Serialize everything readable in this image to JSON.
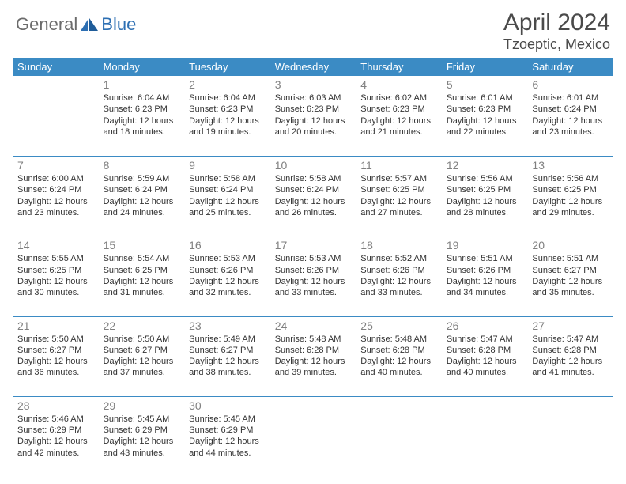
{
  "colors": {
    "accent": "#3b8bc4",
    "border": "#3b8bc4",
    "text": "#333333",
    "daynum": "#808080",
    "bg": "#ffffff",
    "logo_gray": "#6b6b6b",
    "logo_blue": "#2d6fb3"
  },
  "logo": {
    "word1": "General",
    "word2": "Blue"
  },
  "title": {
    "month": "April 2024",
    "location": "Tzoeptic, Mexico"
  },
  "weekdays": [
    "Sunday",
    "Monday",
    "Tuesday",
    "Wednesday",
    "Thursday",
    "Friday",
    "Saturday"
  ],
  "layout": {
    "weeks": 5,
    "columns": 7,
    "cell_fontsize": 11,
    "daynum_fontsize": 14,
    "header_fontsize": 13
  },
  "days": [
    {
      "empty": true
    },
    {
      "n": "1",
      "sr": "Sunrise: 6:04 AM",
      "ss": "Sunset: 6:23 PM",
      "d1": "Daylight: 12 hours",
      "d2": "and 18 minutes."
    },
    {
      "n": "2",
      "sr": "Sunrise: 6:04 AM",
      "ss": "Sunset: 6:23 PM",
      "d1": "Daylight: 12 hours",
      "d2": "and 19 minutes."
    },
    {
      "n": "3",
      "sr": "Sunrise: 6:03 AM",
      "ss": "Sunset: 6:23 PM",
      "d1": "Daylight: 12 hours",
      "d2": "and 20 minutes."
    },
    {
      "n": "4",
      "sr": "Sunrise: 6:02 AM",
      "ss": "Sunset: 6:23 PM",
      "d1": "Daylight: 12 hours",
      "d2": "and 21 minutes."
    },
    {
      "n": "5",
      "sr": "Sunrise: 6:01 AM",
      "ss": "Sunset: 6:23 PM",
      "d1": "Daylight: 12 hours",
      "d2": "and 22 minutes."
    },
    {
      "n": "6",
      "sr": "Sunrise: 6:01 AM",
      "ss": "Sunset: 6:24 PM",
      "d1": "Daylight: 12 hours",
      "d2": "and 23 minutes."
    },
    {
      "n": "7",
      "sr": "Sunrise: 6:00 AM",
      "ss": "Sunset: 6:24 PM",
      "d1": "Daylight: 12 hours",
      "d2": "and 23 minutes."
    },
    {
      "n": "8",
      "sr": "Sunrise: 5:59 AM",
      "ss": "Sunset: 6:24 PM",
      "d1": "Daylight: 12 hours",
      "d2": "and 24 minutes."
    },
    {
      "n": "9",
      "sr": "Sunrise: 5:58 AM",
      "ss": "Sunset: 6:24 PM",
      "d1": "Daylight: 12 hours",
      "d2": "and 25 minutes."
    },
    {
      "n": "10",
      "sr": "Sunrise: 5:58 AM",
      "ss": "Sunset: 6:24 PM",
      "d1": "Daylight: 12 hours",
      "d2": "and 26 minutes."
    },
    {
      "n": "11",
      "sr": "Sunrise: 5:57 AM",
      "ss": "Sunset: 6:25 PM",
      "d1": "Daylight: 12 hours",
      "d2": "and 27 minutes."
    },
    {
      "n": "12",
      "sr": "Sunrise: 5:56 AM",
      "ss": "Sunset: 6:25 PM",
      "d1": "Daylight: 12 hours",
      "d2": "and 28 minutes."
    },
    {
      "n": "13",
      "sr": "Sunrise: 5:56 AM",
      "ss": "Sunset: 6:25 PM",
      "d1": "Daylight: 12 hours",
      "d2": "and 29 minutes."
    },
    {
      "n": "14",
      "sr": "Sunrise: 5:55 AM",
      "ss": "Sunset: 6:25 PM",
      "d1": "Daylight: 12 hours",
      "d2": "and 30 minutes."
    },
    {
      "n": "15",
      "sr": "Sunrise: 5:54 AM",
      "ss": "Sunset: 6:25 PM",
      "d1": "Daylight: 12 hours",
      "d2": "and 31 minutes."
    },
    {
      "n": "16",
      "sr": "Sunrise: 5:53 AM",
      "ss": "Sunset: 6:26 PM",
      "d1": "Daylight: 12 hours",
      "d2": "and 32 minutes."
    },
    {
      "n": "17",
      "sr": "Sunrise: 5:53 AM",
      "ss": "Sunset: 6:26 PM",
      "d1": "Daylight: 12 hours",
      "d2": "and 33 minutes."
    },
    {
      "n": "18",
      "sr": "Sunrise: 5:52 AM",
      "ss": "Sunset: 6:26 PM",
      "d1": "Daylight: 12 hours",
      "d2": "and 33 minutes."
    },
    {
      "n": "19",
      "sr": "Sunrise: 5:51 AM",
      "ss": "Sunset: 6:26 PM",
      "d1": "Daylight: 12 hours",
      "d2": "and 34 minutes."
    },
    {
      "n": "20",
      "sr": "Sunrise: 5:51 AM",
      "ss": "Sunset: 6:27 PM",
      "d1": "Daylight: 12 hours",
      "d2": "and 35 minutes."
    },
    {
      "n": "21",
      "sr": "Sunrise: 5:50 AM",
      "ss": "Sunset: 6:27 PM",
      "d1": "Daylight: 12 hours",
      "d2": "and 36 minutes."
    },
    {
      "n": "22",
      "sr": "Sunrise: 5:50 AM",
      "ss": "Sunset: 6:27 PM",
      "d1": "Daylight: 12 hours",
      "d2": "and 37 minutes."
    },
    {
      "n": "23",
      "sr": "Sunrise: 5:49 AM",
      "ss": "Sunset: 6:27 PM",
      "d1": "Daylight: 12 hours",
      "d2": "and 38 minutes."
    },
    {
      "n": "24",
      "sr": "Sunrise: 5:48 AM",
      "ss": "Sunset: 6:28 PM",
      "d1": "Daylight: 12 hours",
      "d2": "and 39 minutes."
    },
    {
      "n": "25",
      "sr": "Sunrise: 5:48 AM",
      "ss": "Sunset: 6:28 PM",
      "d1": "Daylight: 12 hours",
      "d2": "and 40 minutes."
    },
    {
      "n": "26",
      "sr": "Sunrise: 5:47 AM",
      "ss": "Sunset: 6:28 PM",
      "d1": "Daylight: 12 hours",
      "d2": "and 40 minutes."
    },
    {
      "n": "27",
      "sr": "Sunrise: 5:47 AM",
      "ss": "Sunset: 6:28 PM",
      "d1": "Daylight: 12 hours",
      "d2": "and 41 minutes."
    },
    {
      "n": "28",
      "sr": "Sunrise: 5:46 AM",
      "ss": "Sunset: 6:29 PM",
      "d1": "Daylight: 12 hours",
      "d2": "and 42 minutes."
    },
    {
      "n": "29",
      "sr": "Sunrise: 5:45 AM",
      "ss": "Sunset: 6:29 PM",
      "d1": "Daylight: 12 hours",
      "d2": "and 43 minutes."
    },
    {
      "n": "30",
      "sr": "Sunrise: 5:45 AM",
      "ss": "Sunset: 6:29 PM",
      "d1": "Daylight: 12 hours",
      "d2": "and 44 minutes."
    },
    {
      "empty": true
    },
    {
      "empty": true
    },
    {
      "empty": true
    },
    {
      "empty": true
    }
  ]
}
